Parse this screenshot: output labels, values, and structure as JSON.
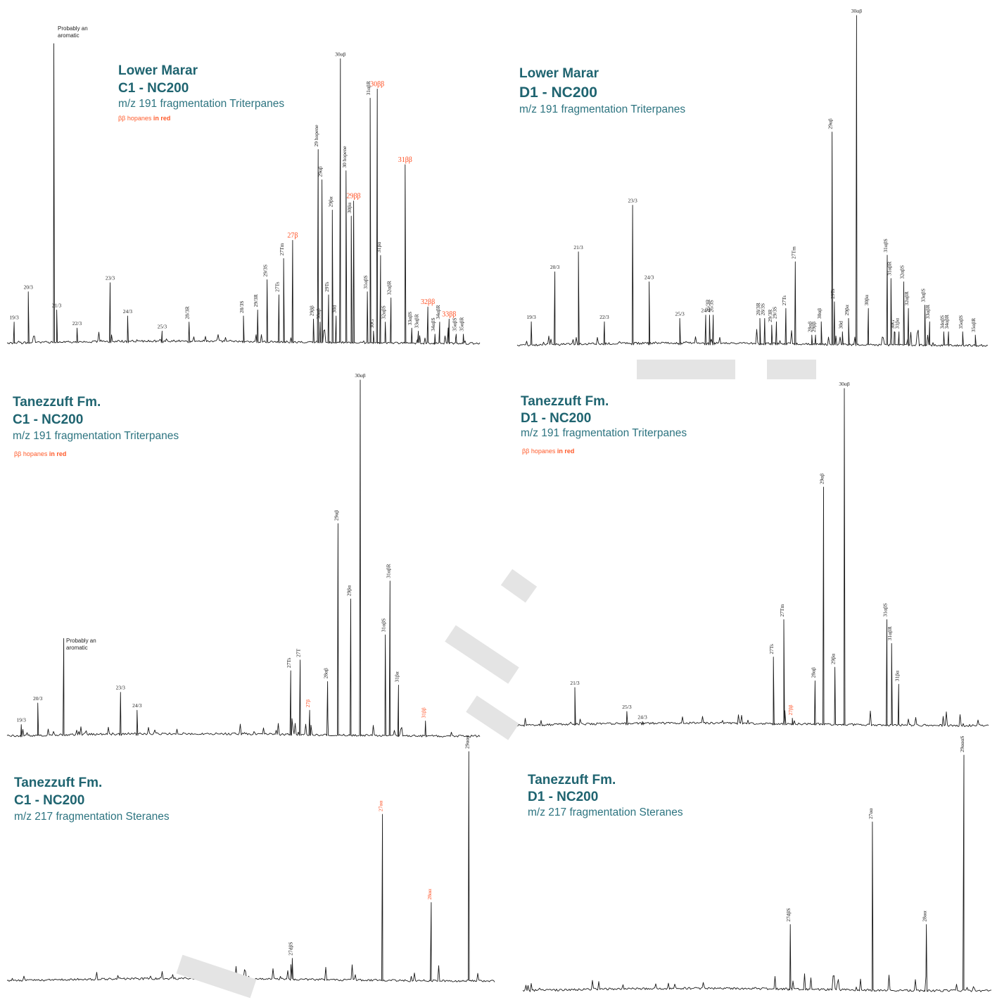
{
  "chart_data": [
    {
      "type": "line",
      "title_line1": "Lower Marar",
      "title_line2": "C1 - NC200",
      "subtitle": "m/z 191 fragmentation Triterpanes",
      "note_prefix": "ββ hopanes",
      "note_suffix": " in red",
      "annotation": "Probably an aromatic",
      "ylim": [
        0,
        100
      ],
      "peaks": [
        {
          "label": "19/3",
          "x": 0.015,
          "y": 8,
          "red": false
        },
        {
          "label": "20/3",
          "x": 0.045,
          "y": 18,
          "red": false
        },
        {
          "label": "21/3",
          "x": 0.105,
          "y": 12,
          "red": false
        },
        {
          "label": "",
          "x": 0.099,
          "y": 100,
          "red": false
        },
        {
          "label": "22/3",
          "x": 0.148,
          "y": 6,
          "red": false
        },
        {
          "label": "23/3",
          "x": 0.218,
          "y": 21,
          "red": false
        },
        {
          "label": "24/3",
          "x": 0.255,
          "y": 10,
          "red": false
        },
        {
          "label": "25/3",
          "x": 0.328,
          "y": 5,
          "red": false
        },
        {
          "label": "28/3R",
          "x": 0.385,
          "y": 8,
          "red": false
        },
        {
          "label": "28/3S",
          "x": 0.5,
          "y": 10,
          "red": false
        },
        {
          "label": "29/3R",
          "x": 0.53,
          "y": 12,
          "red": false
        },
        {
          "label": "29/3S",
          "x": 0.55,
          "y": 22,
          "red": false
        },
        {
          "label": "27Ts",
          "x": 0.575,
          "y": 17,
          "red": false
        },
        {
          "label": "27Tm",
          "x": 0.585,
          "y": 29,
          "red": false
        },
        {
          "label": "27β",
          "x": 0.604,
          "y": 35,
          "red": true
        },
        {
          "label": "29ββ",
          "x": 0.648,
          "y": 9,
          "red": false
        },
        {
          "label": "30αβ",
          "x": 0.662,
          "y": 8,
          "red": false
        },
        {
          "label": "29 hopene",
          "x": 0.658,
          "y": 65,
          "red": false
        },
        {
          "label": "29αβ",
          "x": 0.666,
          "y": 55,
          "red": false
        },
        {
          "label": "29Ts",
          "x": 0.68,
          "y": 17,
          "red": false
        },
        {
          "label": "29βα",
          "x": 0.688,
          "y": 45,
          "red": false
        },
        {
          "label": "30d",
          "x": 0.696,
          "y": 10,
          "red": false
        },
        {
          "label": "30αβ",
          "x": 0.705,
          "y": 95,
          "red": false
        },
        {
          "label": "30 hopene",
          "x": 0.717,
          "y": 58,
          "red": false
        },
        {
          "label": "30βα",
          "x": 0.728,
          "y": 43,
          "red": false
        },
        {
          "label": "29ββ",
          "x": 0.733,
          "y": 48,
          "red": true
        },
        {
          "label": "31αβS",
          "x": 0.762,
          "y": 18,
          "red": false
        },
        {
          "label": "31αβR",
          "x": 0.768,
          "y": 82,
          "red": false
        },
        {
          "label": "30G",
          "x": 0.775,
          "y": 5,
          "red": false
        },
        {
          "label": "30ββ",
          "x": 0.783,
          "y": 85,
          "red": true
        },
        {
          "label": "31βα",
          "x": 0.79,
          "y": 30,
          "red": false
        },
        {
          "label": "32αβS",
          "x": 0.8,
          "y": 8,
          "red": false
        },
        {
          "label": "32αβR",
          "x": 0.812,
          "y": 16,
          "red": false
        },
        {
          "label": "31ββ",
          "x": 0.842,
          "y": 60,
          "red": true
        },
        {
          "label": "33αβS",
          "x": 0.856,
          "y": 6,
          "red": false
        },
        {
          "label": "33αβR",
          "x": 0.87,
          "y": 5,
          "red": false
        },
        {
          "label": "32ββ",
          "x": 0.89,
          "y": 13,
          "red": true
        },
        {
          "label": "34αβS",
          "x": 0.905,
          "y": 4,
          "red": false
        },
        {
          "label": "34αβR",
          "x": 0.915,
          "y": 8,
          "red": false
        },
        {
          "label": "33ββ",
          "x": 0.935,
          "y": 9,
          "red": true
        },
        {
          "label": "35αβS",
          "x": 0.95,
          "y": 4,
          "red": false
        },
        {
          "label": "35αβR",
          "x": 0.965,
          "y": 4,
          "red": false
        }
      ]
    },
    {
      "type": "line",
      "title_line1": "Lower Marar",
      "title_line2": "D1 - NC200",
      "subtitle": "m/z 191 fragmentation Triterpanes",
      "ylim": [
        0,
        100
      ],
      "peaks": [
        {
          "label": "19/3",
          "x": 0.03,
          "y": 8,
          "red": false
        },
        {
          "label": "20/3",
          "x": 0.08,
          "y": 23,
          "red": false
        },
        {
          "label": "21/3",
          "x": 0.13,
          "y": 29,
          "red": false
        },
        {
          "label": "22/3",
          "x": 0.185,
          "y": 8,
          "red": false
        },
        {
          "label": "23/3",
          "x": 0.245,
          "y": 43,
          "red": false
        },
        {
          "label": "24/3",
          "x": 0.28,
          "y": 20,
          "red": false
        },
        {
          "label": "25/3",
          "x": 0.345,
          "y": 9,
          "red": false
        },
        {
          "label": "24/4",
          "x": 0.4,
          "y": 10,
          "red": false
        },
        {
          "label": "26/3R",
          "x": 0.408,
          "y": 10,
          "red": false
        },
        {
          "label": "26/3S",
          "x": 0.416,
          "y": 10,
          "red": false
        },
        {
          "label": "28/3R",
          "x": 0.515,
          "y": 9,
          "red": false
        },
        {
          "label": "28/3S",
          "x": 0.525,
          "y": 9,
          "red": false
        },
        {
          "label": "29/3R",
          "x": 0.54,
          "y": 7,
          "red": false
        },
        {
          "label": "29/3S",
          "x": 0.55,
          "y": 8,
          "red": false
        },
        {
          "label": "27Ts",
          "x": 0.57,
          "y": 12,
          "red": false
        },
        {
          "label": "27Tm",
          "x": 0.59,
          "y": 26,
          "red": false
        },
        {
          "label": "28αβ",
          "x": 0.625,
          "y": 4,
          "red": false
        },
        {
          "label": "29ββ",
          "x": 0.633,
          "y": 4,
          "red": false
        },
        {
          "label": "30αβ",
          "x": 0.645,
          "y": 8,
          "red": false
        },
        {
          "label": "29αβ",
          "x": 0.668,
          "y": 65,
          "red": false
        },
        {
          "label": "29Ts",
          "x": 0.673,
          "y": 14,
          "red": false
        },
        {
          "label": "30d",
          "x": 0.69,
          "y": 5,
          "red": false
        },
        {
          "label": "29βα",
          "x": 0.703,
          "y": 9,
          "red": false
        },
        {
          "label": "30αβ",
          "x": 0.72,
          "y": 100,
          "red": false
        },
        {
          "label": "30βα",
          "x": 0.745,
          "y": 12,
          "red": false
        },
        {
          "label": "31αβS",
          "x": 0.785,
          "y": 28,
          "red": false
        },
        {
          "label": "31αβR",
          "x": 0.793,
          "y": 21,
          "red": false
        },
        {
          "label": "30G",
          "x": 0.8,
          "y": 5,
          "red": false
        },
        {
          "label": "31βα",
          "x": 0.81,
          "y": 5,
          "red": false
        },
        {
          "label": "32αβS",
          "x": 0.82,
          "y": 20,
          "red": false
        },
        {
          "label": "32αβR",
          "x": 0.83,
          "y": 12,
          "red": false
        },
        {
          "label": "33αβS",
          "x": 0.865,
          "y": 13,
          "red": false
        },
        {
          "label": "33αβR",
          "x": 0.875,
          "y": 8,
          "red": false
        },
        {
          "label": "34αβS",
          "x": 0.905,
          "y": 5,
          "red": false
        },
        {
          "label": "34αβR",
          "x": 0.915,
          "y": 5,
          "red": false
        },
        {
          "label": "35αβS",
          "x": 0.945,
          "y": 5,
          "red": false
        },
        {
          "label": "35αβR",
          "x": 0.972,
          "y": 4,
          "red": false
        }
      ]
    },
    {
      "type": "line",
      "title_line1": "Tanezzuft Fm.",
      "title_line2": "C1 - NC200",
      "subtitle": "m/z 191 fragmentation Triterpanes",
      "note_prefix": "ββ hopanes",
      "note_suffix": " in red",
      "annotation": "Probably an aromatic",
      "ylim": [
        0,
        100
      ],
      "peaks": [
        {
          "label": "19/3",
          "x": 0.03,
          "y": 4,
          "red": false
        },
        {
          "label": "20/3",
          "x": 0.065,
          "y": 10,
          "red": false
        },
        {
          "label": "",
          "x": 0.12,
          "y": 28,
          "red": false
        },
        {
          "label": "23/3",
          "x": 0.24,
          "y": 13,
          "red": false
        },
        {
          "label": "24/3",
          "x": 0.275,
          "y": 8,
          "red": false
        },
        {
          "label": "27Ts",
          "x": 0.6,
          "y": 19,
          "red": false
        },
        {
          "label": "27T",
          "x": 0.62,
          "y": 22,
          "red": false
        },
        {
          "label": "27β",
          "x": 0.64,
          "y": 8,
          "red": true
        },
        {
          "label": "28αβ",
          "x": 0.678,
          "y": 16,
          "red": false
        },
        {
          "label": "29αβ",
          "x": 0.7,
          "y": 60,
          "red": false
        },
        {
          "label": "29βα",
          "x": 0.727,
          "y": 39,
          "red": false
        },
        {
          "label": "30αβ",
          "x": 0.747,
          "y": 100,
          "red": false
        },
        {
          "label": "31αβS",
          "x": 0.8,
          "y": 29,
          "red": false
        },
        {
          "label": "31αβR",
          "x": 0.81,
          "y": 44,
          "red": false
        },
        {
          "label": "31βα",
          "x": 0.828,
          "y": 15,
          "red": false
        },
        {
          "label": "31ββ",
          "x": 0.885,
          "y": 5,
          "red": true
        }
      ]
    },
    {
      "type": "line",
      "title_line1": "Tanezzuft Fm.",
      "title_line2": "D1 - NC200",
      "subtitle": "m/z 191 fragmentation Triterpanes",
      "note_prefix": "ββ hopanes",
      "note_suffix": " in red",
      "ylim": [
        0,
        100
      ],
      "peaks": [
        {
          "label": "21/3",
          "x": 0.125,
          "y": 12,
          "red": false
        },
        {
          "label": "25/3",
          "x": 0.235,
          "y": 5,
          "red": false
        },
        {
          "label": "24/3",
          "x": 0.268,
          "y": 2,
          "red": false
        },
        {
          "label": "27Ts",
          "x": 0.545,
          "y": 21,
          "red": false
        },
        {
          "label": "27Tm",
          "x": 0.567,
          "y": 32,
          "red": false
        },
        {
          "label": "27ββ",
          "x": 0.585,
          "y": 3,
          "red": true
        },
        {
          "label": "28αβ",
          "x": 0.633,
          "y": 14,
          "red": false
        },
        {
          "label": "29αβ",
          "x": 0.651,
          "y": 71,
          "red": false
        },
        {
          "label": "29βα",
          "x": 0.675,
          "y": 18,
          "red": false
        },
        {
          "label": "30αβ",
          "x": 0.695,
          "y": 100,
          "red": false
        },
        {
          "label": "31αβS",
          "x": 0.785,
          "y": 32,
          "red": false
        },
        {
          "label": "31αβR",
          "x": 0.795,
          "y": 25,
          "red": false
        },
        {
          "label": "31βα",
          "x": 0.81,
          "y": 13,
          "red": false
        }
      ]
    },
    {
      "type": "line",
      "title_line1": "Tanezzuft Fm.",
      "title_line2": "C1 - NC200",
      "subtitle": "m/z 217 fragmentation Steranes",
      "ylim": [
        0,
        100
      ],
      "peaks": [
        {
          "label": "27dβS",
          "x": 0.585,
          "y": 11,
          "red": false
        },
        {
          "label": "27αα",
          "x": 0.77,
          "y": 73,
          "red": true
        },
        {
          "label": "28αα",
          "x": 0.87,
          "y": 35,
          "red": true
        },
        {
          "label": "29ααα",
          "x": 0.947,
          "y": 100,
          "red": false
        }
      ]
    },
    {
      "type": "line",
      "title_line1": "Tanezzuft Fm.",
      "title_line2": "D1 - NC200",
      "subtitle": "m/z 217 fragmentation Steranes",
      "ylim": [
        0,
        100
      ],
      "peaks": [
        {
          "label": "27dβS",
          "x": 0.57,
          "y": 29,
          "red": false
        },
        {
          "label": "27αα",
          "x": 0.745,
          "y": 72,
          "red": false
        },
        {
          "label": "28αα",
          "x": 0.86,
          "y": 29,
          "red": false
        },
        {
          "label": "29αααS",
          "x": 0.94,
          "y": 100,
          "red": false
        }
      ]
    }
  ]
}
